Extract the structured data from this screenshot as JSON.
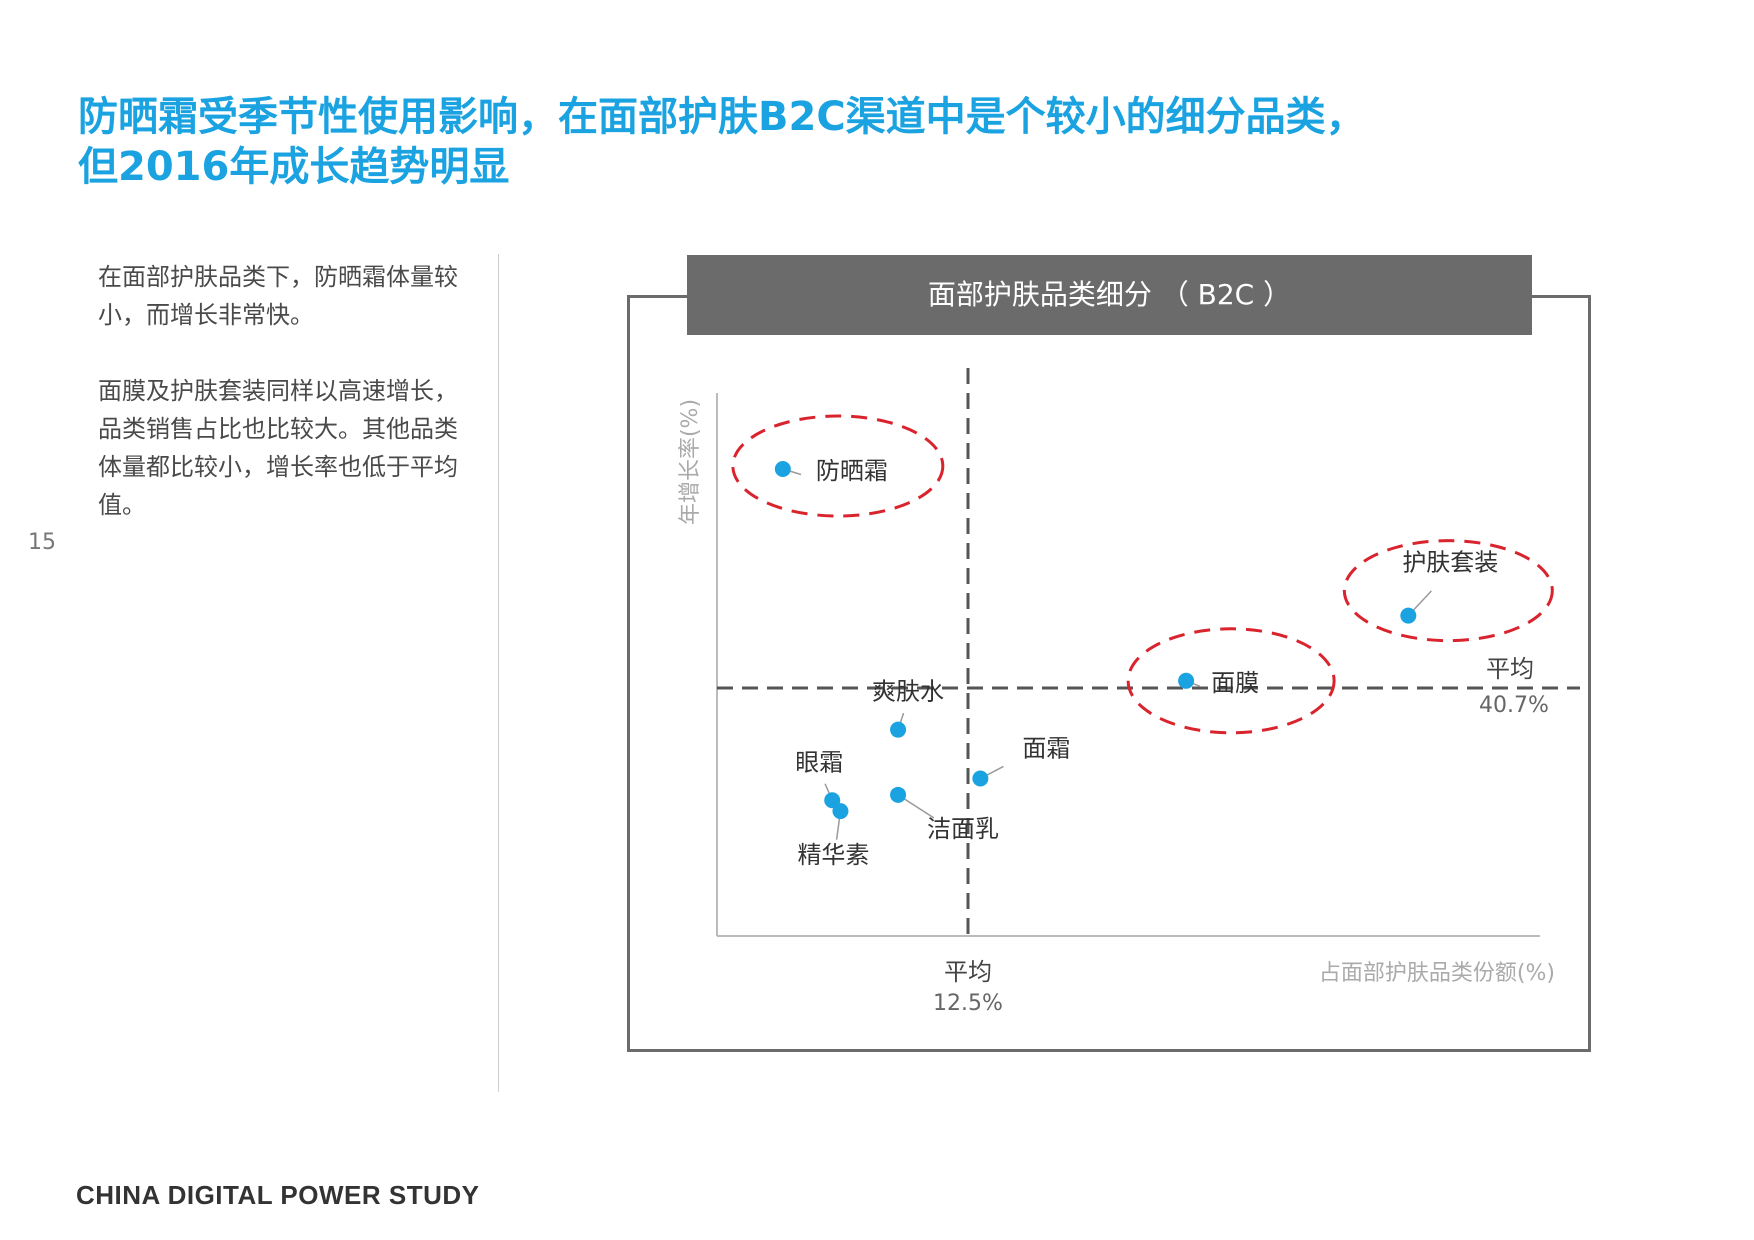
{
  "page": {
    "title_line1": "防晒霜受季节性使用影响，在面部护肤B2C渠道中是个较小的细分品类，",
    "title_line2": "但2016年成长趋势明显",
    "sidebar_para1": "在面部护肤品类下，防晒霜体量较小，而增长非常快。",
    "sidebar_para2": "面膜及护肤套装同样以高速增长，品类销售占比也比较大。其他品类体量都比较小，增长率也低于平均值。",
    "page_number": "15",
    "footer": "CHINA DIGITAL POWER STUDY"
  },
  "colors": {
    "title": "#1aa3e0",
    "point": "#1aa3e0",
    "highlight": "#d9232d",
    "frame": "#6b6b6b"
  },
  "chart_data": {
    "type": "scatter",
    "title": "面部护肤品类细分 （ B2C ）",
    "xlabel": "占面部护肤品类份额(%)",
    "ylabel": "年增长率(%)",
    "avg_x": {
      "label": "平均",
      "value_label": "12.5%"
    },
    "avg_y": {
      "label": "平均",
      "value_label": "40.7%"
    },
    "grid": false,
    "points": [
      {
        "name": "防晒霜",
        "x": 0.08,
        "y": 0.86,
        "highlighted": true
      },
      {
        "name": "护肤套装",
        "x": 0.84,
        "y": 0.59,
        "highlighted": true
      },
      {
        "name": "面膜",
        "x": 0.57,
        "y": 0.47,
        "highlighted": true
      },
      {
        "name": "爽肤水",
        "x": 0.22,
        "y": 0.38,
        "highlighted": false
      },
      {
        "name": "面霜",
        "x": 0.32,
        "y": 0.29,
        "highlighted": false
      },
      {
        "name": "眼霜",
        "x": 0.14,
        "y": 0.25,
        "highlighted": false
      },
      {
        "name": "洁面乳",
        "x": 0.22,
        "y": 0.26,
        "highlighted": false
      },
      {
        "name": "精华素",
        "x": 0.15,
        "y": 0.23,
        "highlighted": false
      }
    ]
  }
}
